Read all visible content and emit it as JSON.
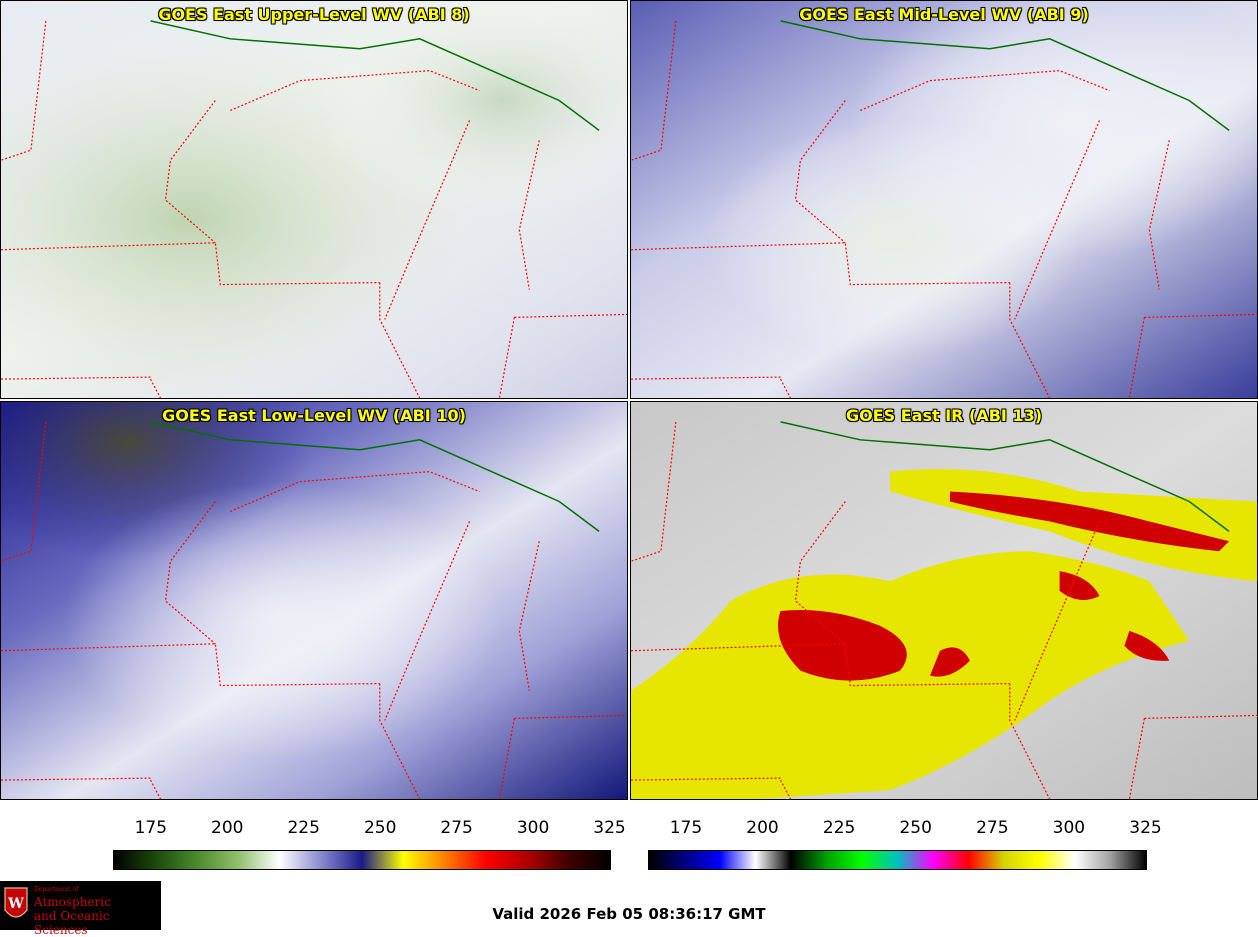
{
  "panels": {
    "upper": {
      "title": "GOES East Upper-Level WV (ABI 8)"
    },
    "mid": {
      "title": "GOES East Mid-Level WV (ABI 9)"
    },
    "low": {
      "title": "GOES East Low-Level WV (ABI 10)"
    },
    "ir": {
      "title": "GOES East IR (ABI 13)"
    }
  },
  "colorbars": {
    "wv": {
      "ticks": [
        "175",
        "200",
        "225",
        "250",
        "275",
        "300",
        "325"
      ],
      "colors": [
        "#000000",
        "#1b4a0c",
        "#4a8a2a",
        "#8fbf6a",
        "#ffffff",
        "#8a8ad0",
        "#1a1a8a",
        "#ffff00",
        "#ff8000",
        "#ff0000",
        "#b00000",
        "#400000",
        "#000000"
      ]
    },
    "ir": {
      "ticks": [
        "175",
        "200",
        "225",
        "250",
        "275",
        "300",
        "325"
      ],
      "colors": [
        "#000000",
        "#000080",
        "#0000ff",
        "#ffffff",
        "#000000",
        "#00a000",
        "#00ff00",
        "#00c0c0",
        "#ff00ff",
        "#ff0000",
        "#d4d400",
        "#ffff00",
        "#ffffff",
        "#a0a0a0",
        "#000000"
      ]
    }
  },
  "valid_time": "Valid 2026 Feb 05 08:36:17 GMT",
  "logo": {
    "dept": "Department of",
    "line1": "Atmospheric",
    "line2": "and Oceanic Sciences",
    "crest_letter": "W"
  }
}
